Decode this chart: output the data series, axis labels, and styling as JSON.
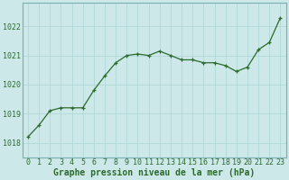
{
  "x": [
    0,
    1,
    2,
    3,
    4,
    5,
    6,
    7,
    8,
    9,
    10,
    11,
    12,
    13,
    14,
    15,
    16,
    17,
    18,
    19,
    20,
    21,
    22,
    23
  ],
  "y": [
    1018.2,
    1018.6,
    1019.1,
    1019.2,
    1019.2,
    1019.2,
    1019.8,
    1020.3,
    1020.75,
    1021.0,
    1021.05,
    1021.0,
    1021.15,
    1021.0,
    1020.85,
    1020.85,
    1020.75,
    1020.75,
    1020.65,
    1020.45,
    1020.6,
    1021.2,
    1021.45,
    1022.3
  ],
  "line_color": "#2d6a2d",
  "marker": "+",
  "marker_color": "#2d6a2d",
  "bg_color": "#cce8e8",
  "grid_color": "#b0d8d8",
  "tick_label_color": "#2d6a2d",
  "xlabel": "Graphe pression niveau de la mer (hPa)",
  "xlabel_color": "#2d6a2d",
  "ylim": [
    1017.5,
    1022.8
  ],
  "yticks": [
    1018,
    1019,
    1020,
    1021,
    1022
  ],
  "xticks": [
    0,
    1,
    2,
    3,
    4,
    5,
    6,
    7,
    8,
    9,
    10,
    11,
    12,
    13,
    14,
    15,
    16,
    17,
    18,
    19,
    20,
    21,
    22,
    23
  ],
  "label_fontsize": 7.0,
  "tick_fontsize": 6.0,
  "spine_color": "#7ab0b0"
}
